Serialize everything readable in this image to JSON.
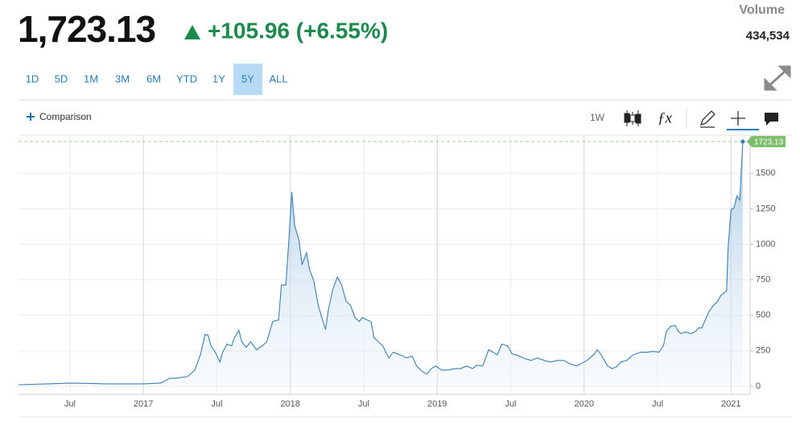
{
  "header": {
    "price": "1,723.13",
    "change": "+105.96 (+6.55%)",
    "volume_label": "Volume",
    "volume": "434,534"
  },
  "ranges": [
    "1D",
    "5D",
    "1M",
    "3M",
    "6M",
    "YTD",
    "1Y",
    "5Y",
    "ALL"
  ],
  "selected_range": "5Y",
  "toolbar": {
    "comparison": "Comparison",
    "interval": "1W"
  },
  "chart_data": {
    "type": "area",
    "x": [
      2016.15,
      2016.35,
      2016.51,
      2016.74,
      2017.0,
      2017.12,
      2017.18,
      2017.22,
      2017.3,
      2017.35,
      2017.39,
      2017.42,
      2017.44,
      2017.46,
      2017.49,
      2017.52,
      2017.54,
      2017.57,
      2017.6,
      2017.62,
      2017.65,
      2017.67,
      2017.7,
      2017.73,
      2017.77,
      2017.81,
      2017.84,
      2017.88,
      2017.92,
      2017.94,
      2017.97,
      2017.99,
      2018.01,
      2018.03,
      2018.06,
      2018.08,
      2018.11,
      2018.13,
      2018.16,
      2018.19,
      2018.22,
      2018.24,
      2018.26,
      2018.29,
      2018.32,
      2018.35,
      2018.38,
      2018.41,
      2018.44,
      2018.47,
      2018.49,
      2018.52,
      2018.55,
      2018.57,
      2018.6,
      2018.63,
      2018.67,
      2018.7,
      2018.73,
      2018.76,
      2018.79,
      2018.83,
      2018.86,
      2018.9,
      2018.93,
      2018.96,
      2018.99,
      2019.03,
      2019.07,
      2019.12,
      2019.16,
      2019.2,
      2019.24,
      2019.27,
      2019.31,
      2019.35,
      2019.38,
      2019.41,
      2019.44,
      2019.48,
      2019.51,
      2019.55,
      2019.6,
      2019.64,
      2019.68,
      2019.73,
      2019.77,
      2019.82,
      2019.86,
      2019.9,
      2019.95,
      2019.98,
      2020.02,
      2020.07,
      2020.09,
      2020.12,
      2020.16,
      2020.19,
      2020.22,
      2020.25,
      2020.29,
      2020.32,
      2020.35,
      2020.39,
      2020.43,
      2020.47,
      2020.51,
      2020.54,
      2020.56,
      2020.59,
      2020.62,
      2020.64,
      2020.66,
      2020.69,
      2020.73,
      2020.76,
      2020.78,
      2020.8,
      2020.82,
      2020.85,
      2020.88,
      2020.91,
      2020.93,
      2020.97,
      2020.98,
      2021.0,
      2021.02,
      2021.04,
      2021.06,
      2021.08
    ],
    "values": [
      11,
      17,
      23,
      17,
      17,
      23,
      57,
      57,
      68,
      114,
      228,
      365,
      359,
      285,
      240,
      171,
      240,
      297,
      285,
      342,
      394,
      314,
      274,
      314,
      257,
      285,
      314,
      456,
      468,
      713,
      713,
      1027,
      1369,
      1129,
      1027,
      855,
      941,
      827,
      741,
      570,
      468,
      399,
      542,
      684,
      770,
      713,
      599,
      570,
      485,
      456,
      485,
      468,
      456,
      342,
      314,
      285,
      200,
      240,
      228,
      217,
      200,
      211,
      143,
      103,
      86,
      125,
      143,
      114,
      114,
      125,
      125,
      143,
      125,
      148,
      143,
      257,
      240,
      222,
      297,
      285,
      228,
      217,
      194,
      182,
      200,
      182,
      171,
      182,
      182,
      160,
      143,
      160,
      182,
      228,
      257,
      217,
      143,
      125,
      137,
      171,
      182,
      211,
      228,
      240,
      240,
      245,
      240,
      285,
      388,
      422,
      428,
      388,
      371,
      382,
      371,
      388,
      411,
      411,
      456,
      525,
      570,
      599,
      639,
      673,
      970,
      1243,
      1255,
      1340,
      1312,
      1723.13
    ],
    "color": "#3a7fb5",
    "xlim": [
      2016.15,
      2021.13
    ],
    "xticks": [
      {
        "value": 2016.5,
        "label": "Jul"
      },
      2017,
      {
        "value": 2017.5,
        "label": "Jul"
      },
      2018,
      {
        "value": 2018.5,
        "label": "Jul"
      },
      2019,
      {
        "value": 2019.5,
        "label": "Jul"
      },
      2020,
      {
        "value": 2020.5,
        "label": "Jul"
      },
      2021
    ],
    "ylim": [
      -57,
      1768
    ],
    "yticks": [
      0,
      250,
      500,
      750,
      1000,
      1250,
      1500
    ],
    "grid": true
  }
}
